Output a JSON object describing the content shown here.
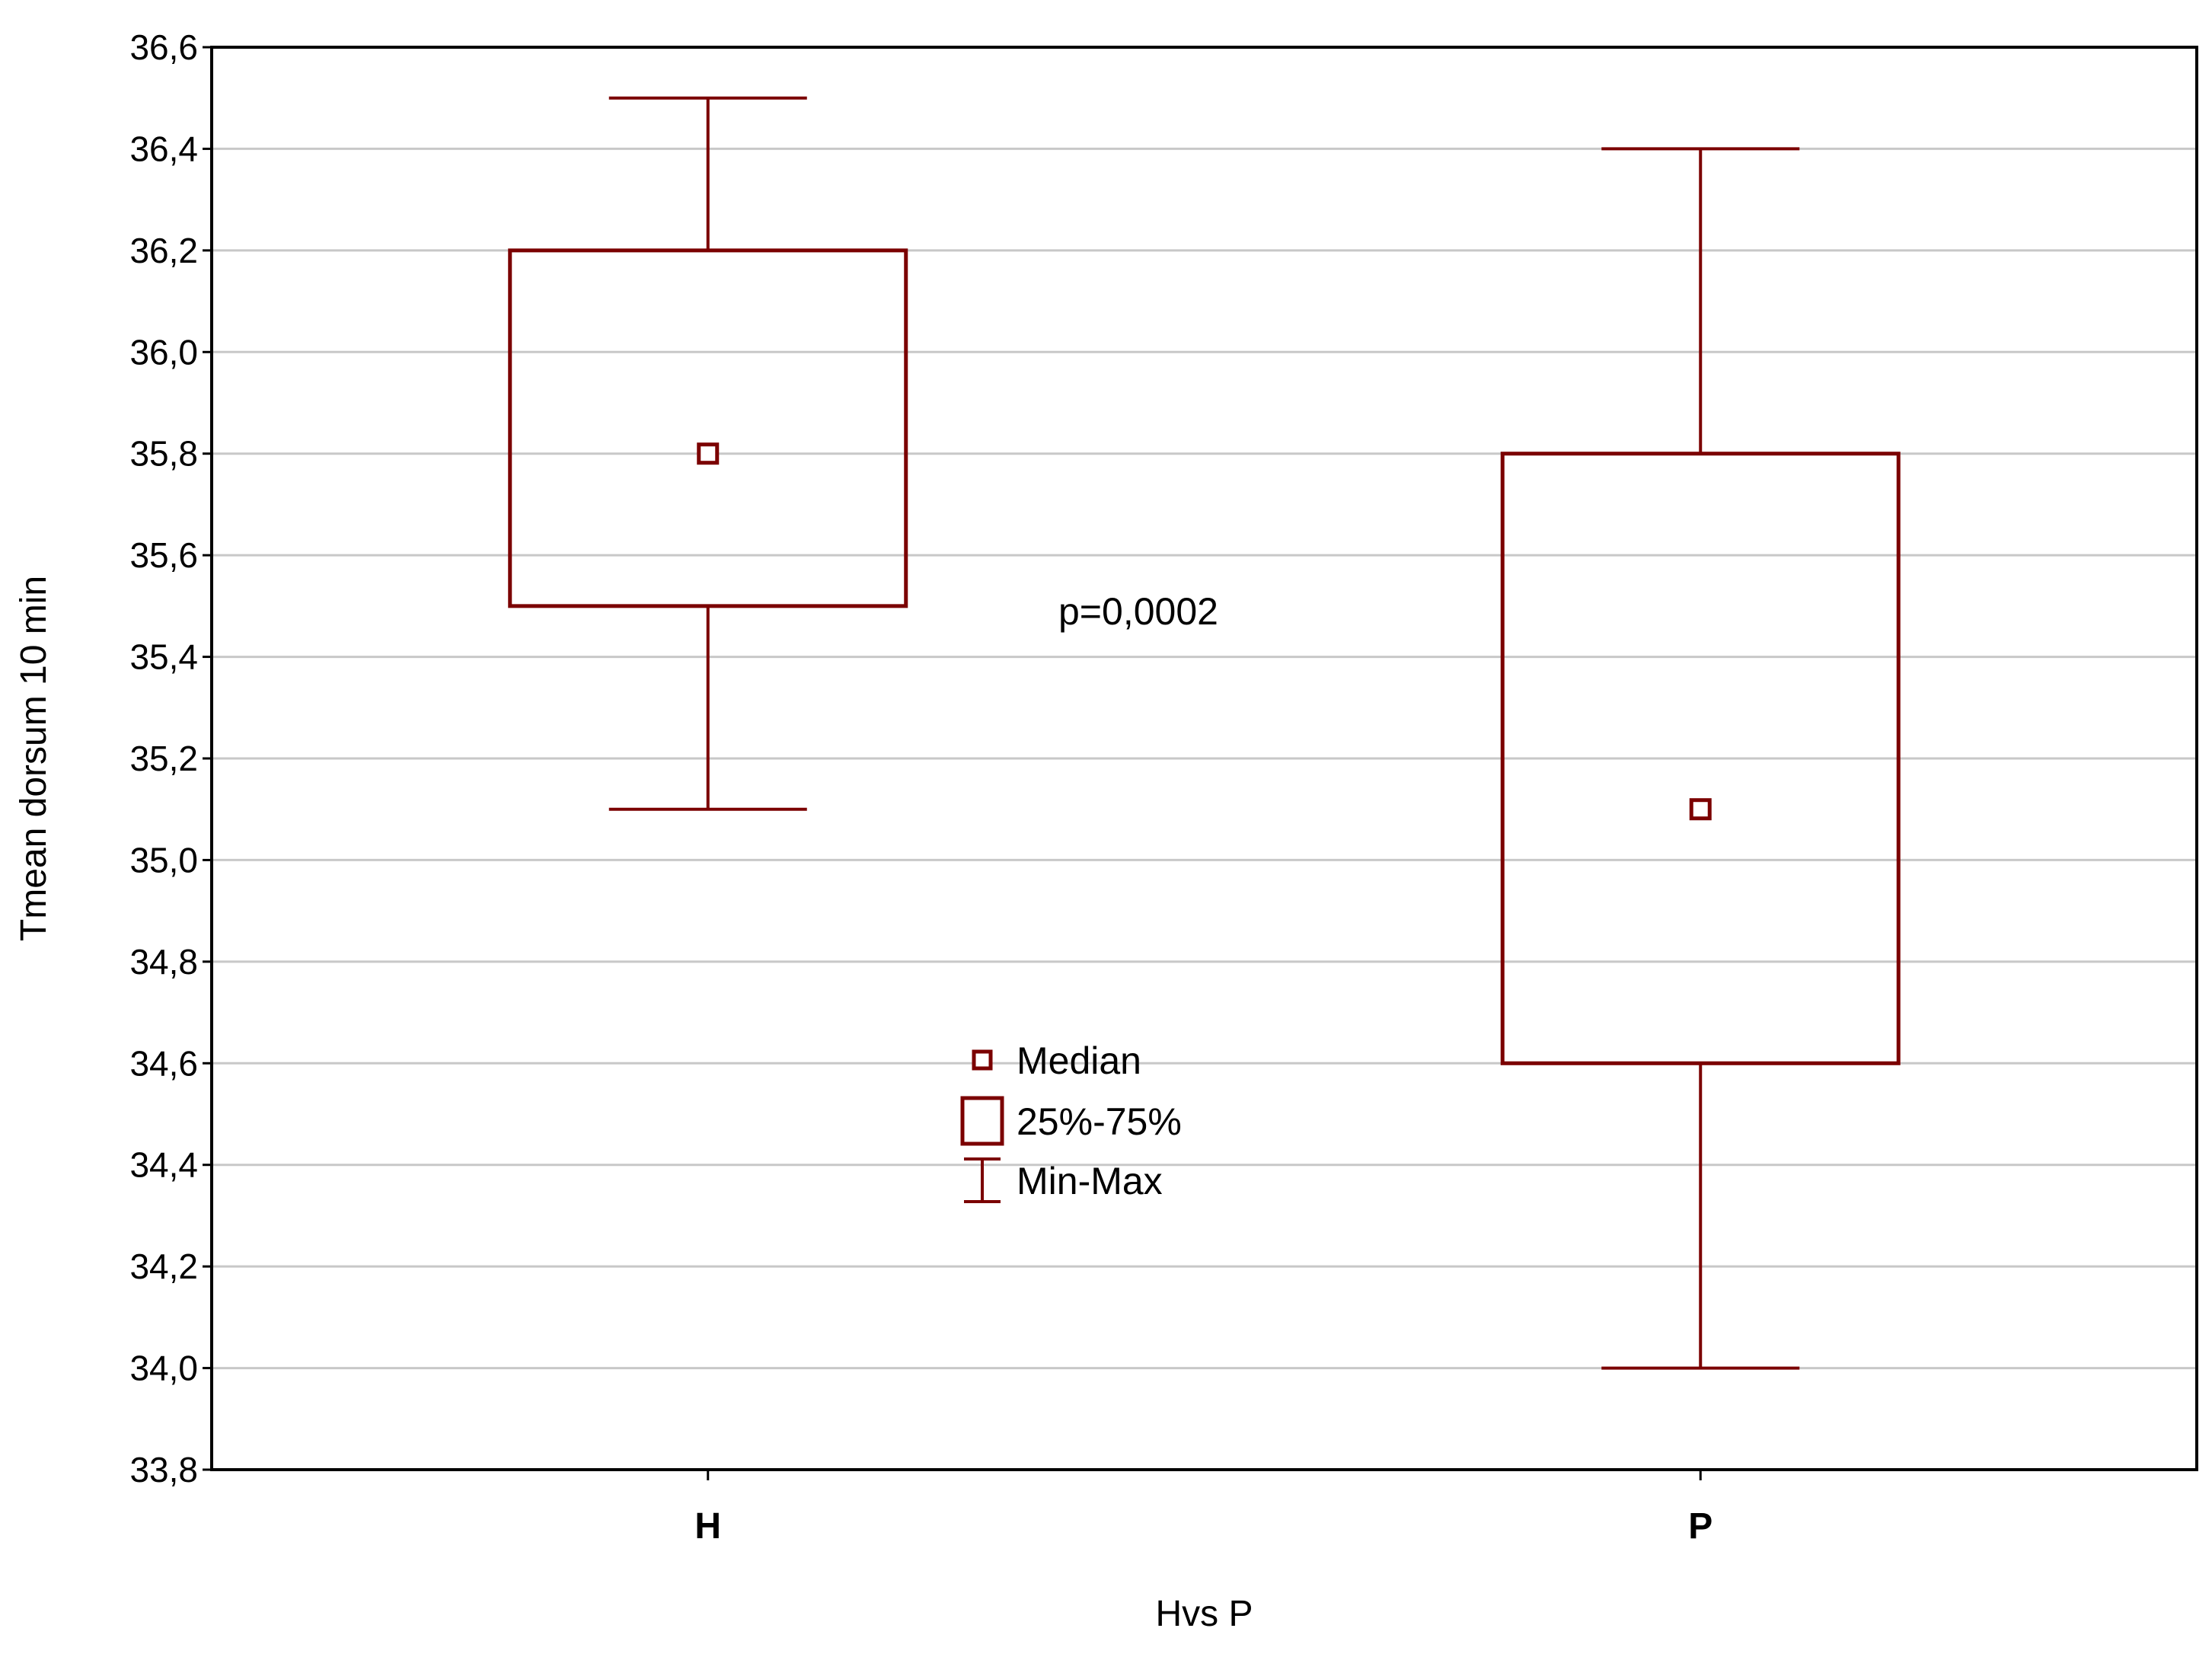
{
  "chart_data": {
    "type": "box",
    "xlabel": "Hvs P",
    "ylabel": "Tmean dorsum 10 min",
    "ylim": [
      33.8,
      36.6
    ],
    "y_ticks": [
      "33,8",
      "34,0",
      "34,2",
      "34,4",
      "34,6",
      "34,8",
      "35,0",
      "35,2",
      "35,4",
      "35,6",
      "35,8",
      "36,0",
      "36,2",
      "36,4",
      "36,6"
    ],
    "grid": true,
    "categories": [
      "H",
      "P"
    ],
    "boxes": [
      {
        "category": "H",
        "min": 35.1,
        "q1": 35.5,
        "median": 35.8,
        "q3": 36.2,
        "max": 36.5
      },
      {
        "category": "P",
        "min": 34.0,
        "q1": 34.6,
        "median": 35.1,
        "q3": 35.8,
        "max": 36.4
      }
    ],
    "annotation": "p=0,0002",
    "legend": {
      "placement": "center",
      "items": [
        {
          "symbol": "median",
          "label": "Median"
        },
        {
          "symbol": "box",
          "label": "25%-75%"
        },
        {
          "symbol": "whisker",
          "label": "Min-Max"
        }
      ]
    },
    "colors": {
      "box": "#7b0000",
      "grid": "#c8c8c8",
      "axis": "#000000"
    }
  }
}
